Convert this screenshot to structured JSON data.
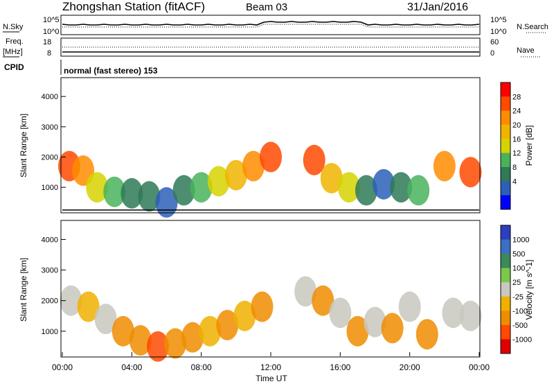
{
  "header": {
    "station": "Zhongshan Station (fitACF)",
    "beam": "Beam 03",
    "date": "31/Jan/2016"
  },
  "noise_panel": {
    "left_label": "N.Sky",
    "right_label": "N.Search",
    "left_ticks": [
      "10^5",
      "10^0"
    ],
    "right_ticks": [
      "10^5",
      "10^0"
    ]
  },
  "freq_panel": {
    "left_label_1": "Freq.",
    "left_label_2": "[MHz]",
    "right_label": "Nave",
    "left_ticks": [
      "18",
      "8"
    ],
    "right_ticks": [
      "60",
      "0"
    ]
  },
  "cpid": {
    "label": "CPID",
    "value": "normal (fast stereo) 153"
  },
  "chart_data": [
    {
      "type": "heatmap",
      "title": "",
      "ylabel": "Slant Range [km]",
      "xlabel": "",
      "ylim": [
        180,
        4600
      ],
      "yticks": [
        "1000",
        "2000",
        "3000",
        "4000"
      ],
      "xticks": [
        "00:00",
        "04:00",
        "08:00",
        "12:00",
        "16:00",
        "20:00",
        "00:00"
      ],
      "colorbar": {
        "label": "Power [dB]",
        "ticks": [
          "28",
          "24",
          "20",
          "16",
          "12",
          "8",
          "4"
        ],
        "colors": [
          "#ff0000",
          "#ff4a00",
          "#ff8c00",
          "#f0b400",
          "#d6d300",
          "#49b35a",
          "#2f7a57",
          "#2d5fb8",
          "#0000ff"
        ]
      },
      "blobs": [
        {
          "t": 0.4,
          "r": 1700,
          "c": 1
        },
        {
          "t": 1.2,
          "r": 1550,
          "c": 2
        },
        {
          "t": 2.0,
          "r": 1000,
          "c": 4
        },
        {
          "t": 3.0,
          "r": 850,
          "c": 5
        },
        {
          "t": 4.0,
          "r": 800,
          "c": 6
        },
        {
          "t": 5.0,
          "r": 700,
          "c": 6
        },
        {
          "t": 6.0,
          "r": 500,
          "c": 7
        },
        {
          "t": 7.0,
          "r": 900,
          "c": 6
        },
        {
          "t": 8.0,
          "r": 1000,
          "c": 5
        },
        {
          "t": 9.0,
          "r": 1200,
          "c": 4
        },
        {
          "t": 10.0,
          "r": 1400,
          "c": 3
        },
        {
          "t": 11.0,
          "r": 1700,
          "c": 2
        },
        {
          "t": 12.0,
          "r": 2000,
          "c": 1
        },
        {
          "t": 14.5,
          "r": 1900,
          "c": 1
        },
        {
          "t": 15.5,
          "r": 1300,
          "c": 3
        },
        {
          "t": 16.5,
          "r": 1000,
          "c": 4
        },
        {
          "t": 17.5,
          "r": 900,
          "c": 6
        },
        {
          "t": 18.5,
          "r": 1100,
          "c": 7
        },
        {
          "t": 19.5,
          "r": 1000,
          "c": 6
        },
        {
          "t": 20.5,
          "r": 900,
          "c": 5
        },
        {
          "t": 22.0,
          "r": 1700,
          "c": 2
        },
        {
          "t": 23.5,
          "r": 1500,
          "c": 1
        }
      ]
    },
    {
      "type": "heatmap",
      "title": "",
      "ylabel": "Slant Range [km]",
      "xlabel": "Time UT",
      "ylim": [
        180,
        4600
      ],
      "yticks": [
        "1000",
        "2000",
        "3000",
        "4000"
      ],
      "xticks": [
        "00:00",
        "04:00",
        "08:00",
        "12:00",
        "16:00",
        "20:00",
        "00:00"
      ],
      "colorbar": {
        "label": "Velocity [m s^-1]",
        "ticks": [
          "1000",
          "500",
          "100",
          "25",
          "-25",
          "-100",
          "-500",
          "-1000"
        ],
        "colors": [
          "#2b3fc0",
          "#3c6ec4",
          "#3a8a5a",
          "#7cc84a",
          "#c8c8c0",
          "#f0b000",
          "#f08c00",
          "#ff4a00",
          "#e00000"
        ]
      },
      "blobs": [
        {
          "t": 0.5,
          "r": 2000,
          "c": 4
        },
        {
          "t": 1.5,
          "r": 1800,
          "c": 5
        },
        {
          "t": 2.5,
          "r": 1400,
          "c": 4
        },
        {
          "t": 3.5,
          "r": 1000,
          "c": 6
        },
        {
          "t": 4.5,
          "r": 700,
          "c": 6
        },
        {
          "t": 5.5,
          "r": 500,
          "c": 7
        },
        {
          "t": 6.5,
          "r": 600,
          "c": 6
        },
        {
          "t": 7.5,
          "r": 800,
          "c": 6
        },
        {
          "t": 8.5,
          "r": 1000,
          "c": 5
        },
        {
          "t": 9.5,
          "r": 1200,
          "c": 6
        },
        {
          "t": 10.5,
          "r": 1500,
          "c": 5
        },
        {
          "t": 11.5,
          "r": 1800,
          "c": 6
        },
        {
          "t": 14.0,
          "r": 2300,
          "c": 4
        },
        {
          "t": 15.0,
          "r": 2000,
          "c": 6
        },
        {
          "t": 16.0,
          "r": 1600,
          "c": 4
        },
        {
          "t": 17.0,
          "r": 1000,
          "c": 6
        },
        {
          "t": 18.0,
          "r": 1300,
          "c": 4
        },
        {
          "t": 19.0,
          "r": 1100,
          "c": 6
        },
        {
          "t": 20.0,
          "r": 1800,
          "c": 4
        },
        {
          "t": 21.0,
          "r": 900,
          "c": 6
        },
        {
          "t": 22.5,
          "r": 1600,
          "c": 4
        },
        {
          "t": 23.5,
          "r": 1500,
          "c": 4
        }
      ]
    }
  ]
}
